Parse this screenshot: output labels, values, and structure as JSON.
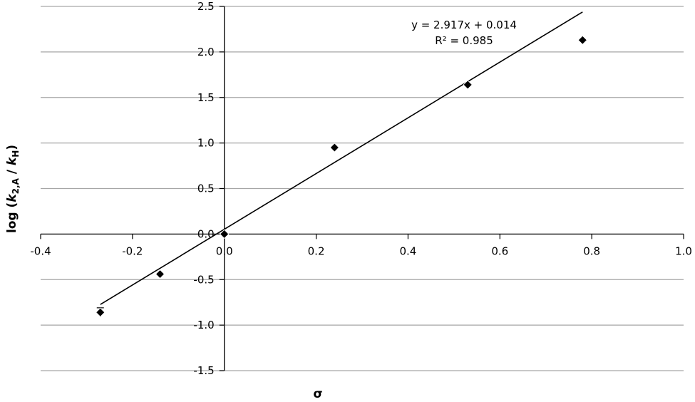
{
  "chart_data": {
    "type": "scatter",
    "title": "",
    "xlabel": "σ",
    "ylabel_parts": {
      "prefix": "log (",
      "k1": "k",
      "sub1": "2,A",
      "slash": " / ",
      "k2": "k",
      "sub2": "H",
      "suffix": ")"
    },
    "xlim": [
      -0.4,
      1.0
    ],
    "ylim": [
      -1.5,
      2.5
    ],
    "x_ticks": [
      -0.4,
      -0.2,
      0.0,
      0.2,
      0.4,
      0.6,
      0.8,
      1.0
    ],
    "x_tick_labels": [
      "-0.4",
      "-0.2",
      "0.0",
      "0.2",
      "0.4",
      "0.6",
      "0.8",
      "1.0"
    ],
    "y_ticks": [
      -1.5,
      -1.0,
      -0.5,
      0.0,
      0.5,
      1.0,
      1.5,
      2.0,
      2.5
    ],
    "y_tick_labels": [
      "-1.5",
      "-1.0",
      "-0.5",
      "0.0",
      "0.5",
      "1.0",
      "1.5",
      "2.0",
      "2.5"
    ],
    "grid": {
      "horizontal": true,
      "vertical": false
    },
    "points": [
      {
        "x": -0.27,
        "y": -0.86,
        "y_error": 0.05
      },
      {
        "x": -0.14,
        "y": -0.44
      },
      {
        "x": 0.0,
        "y": 0.0
      },
      {
        "x": 0.24,
        "y": 0.95
      },
      {
        "x": 0.53,
        "y": 1.64
      },
      {
        "x": 0.78,
        "y": 2.13
      }
    ],
    "trendline": {
      "slope": 2.917,
      "intercept": 0.014,
      "x_start": -0.27,
      "x_end": 0.78,
      "equation": "y = 2.917x + 0.014",
      "r_squared": "R² = 0.985"
    },
    "colors": {
      "marker": "#000000",
      "line": "#000000",
      "grid": "#a6a6a6",
      "axis": "#000000"
    }
  }
}
